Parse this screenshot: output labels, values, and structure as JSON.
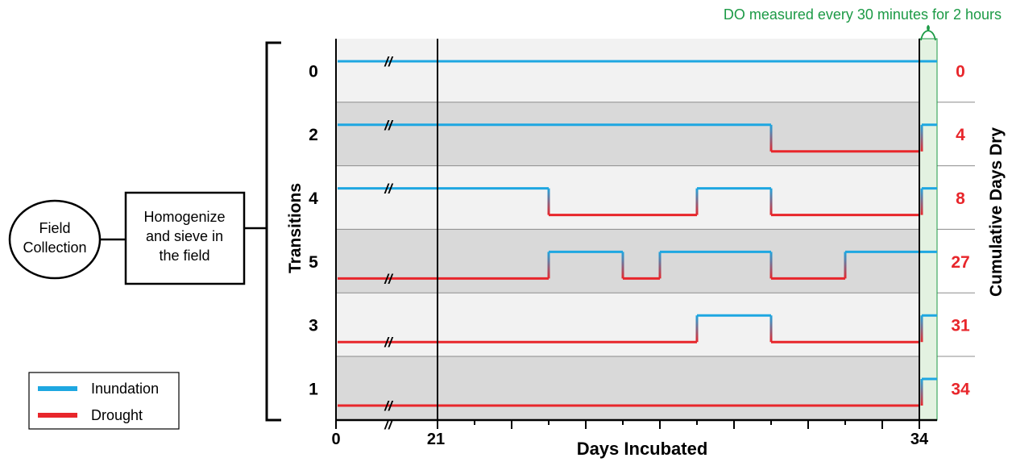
{
  "flow": {
    "field_collection_line1": "Field",
    "field_collection_line2": "Collection",
    "homogenize_line1": "Homogenize",
    "homogenize_line2": "and sieve in",
    "homogenize_line3": "the field"
  },
  "top_annotation": "DO measured every 30 minutes for 2 hours",
  "legend": {
    "inundation": "Inundation",
    "drought": "Drought"
  },
  "colors": {
    "inundation": "#1EA7E1",
    "drought": "#E8262B",
    "annotation": "#1C9A46",
    "band_light": "#F2F2F2",
    "band_dark": "#D9D9D9",
    "measure_band": "#E3F2E1"
  },
  "chart_data": {
    "type": "line",
    "xlabel": "Days Incubated",
    "left_axis_label": "Transitions",
    "right_axis_label": "Cumulative Days Dry",
    "x_ticks_labeled": [
      "0",
      "21",
      "34"
    ],
    "x_range": [
      21,
      34
    ],
    "axis_break": "//",
    "rows": [
      {
        "transitions": "0",
        "cumulative_days_dry": "0",
        "initial": "inundation",
        "switch_days": [],
        "final_inundation": false
      },
      {
        "transitions": "2",
        "cumulative_days_dry": "4",
        "initial": "inundation",
        "switch_days": [
          30
        ],
        "final_inundation": true
      },
      {
        "transitions": "4",
        "cumulative_days_dry": "8",
        "initial": "inundation",
        "switch_days": [
          24,
          28,
          30
        ],
        "final_inundation": true
      },
      {
        "transitions": "5",
        "cumulative_days_dry": "27",
        "initial": "drought",
        "switch_days": [
          24,
          26,
          27,
          30,
          32
        ],
        "final_inundation": false
      },
      {
        "transitions": "3",
        "cumulative_days_dry": "31",
        "initial": "drought",
        "switch_days": [
          28,
          30
        ],
        "final_inundation": true
      },
      {
        "transitions": "1",
        "cumulative_days_dry": "34",
        "initial": "drought",
        "switch_days": [],
        "final_inundation": true
      }
    ]
  }
}
